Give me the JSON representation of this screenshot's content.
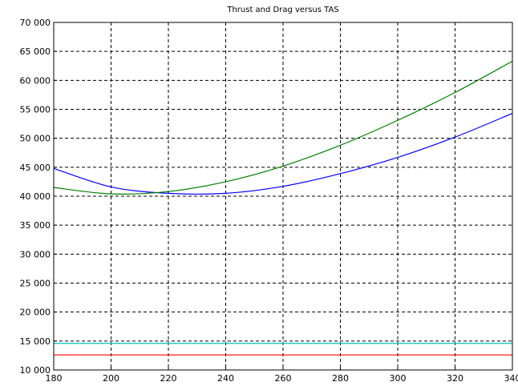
{
  "chart_data": {
    "type": "line",
    "title": "Thrust and Drag versus TAS",
    "xlabel": "",
    "ylabel": "",
    "xlim": [
      180,
      340
    ],
    "ylim": [
      10000,
      70000
    ],
    "x_ticks": [
      180,
      200,
      220,
      240,
      260,
      280,
      300,
      320,
      340
    ],
    "x_tick_labels": [
      "180",
      "200",
      "220",
      "240",
      "260",
      "280",
      "300",
      "320",
      "340"
    ],
    "y_ticks": [
      10000,
      15000,
      20000,
      25000,
      30000,
      35000,
      40000,
      45000,
      50000,
      55000,
      60000,
      65000,
      70000
    ],
    "y_tick_labels": [
      "10 000",
      "15 000",
      "20 000",
      "25 000",
      "30 000",
      "35 000",
      "40 000",
      "45 000",
      "50 000",
      "55 000",
      "60 000",
      "65 000",
      "70 000"
    ],
    "grid": true,
    "legend": "none",
    "x": [
      180,
      200,
      220,
      240,
      260,
      280,
      300,
      320,
      340
    ],
    "series": [
      {
        "color": "#0000ff",
        "values": [
          44800,
          41600,
          40500,
          40500,
          41700,
          43900,
          46700,
          50200,
          54300
        ]
      },
      {
        "color": "#008000",
        "values": [
          41500,
          40400,
          40800,
          42500,
          45200,
          48800,
          53100,
          57900,
          63300
        ]
      },
      {
        "color": "#00c0c0",
        "values": [
          14600,
          14600,
          14600,
          14600,
          14600,
          14600,
          14600,
          14600,
          14600
        ]
      },
      {
        "color": "#ff0000",
        "values": [
          12600,
          12600,
          12600,
          12600,
          12600,
          12600,
          12600,
          12600,
          12600
        ]
      }
    ]
  }
}
